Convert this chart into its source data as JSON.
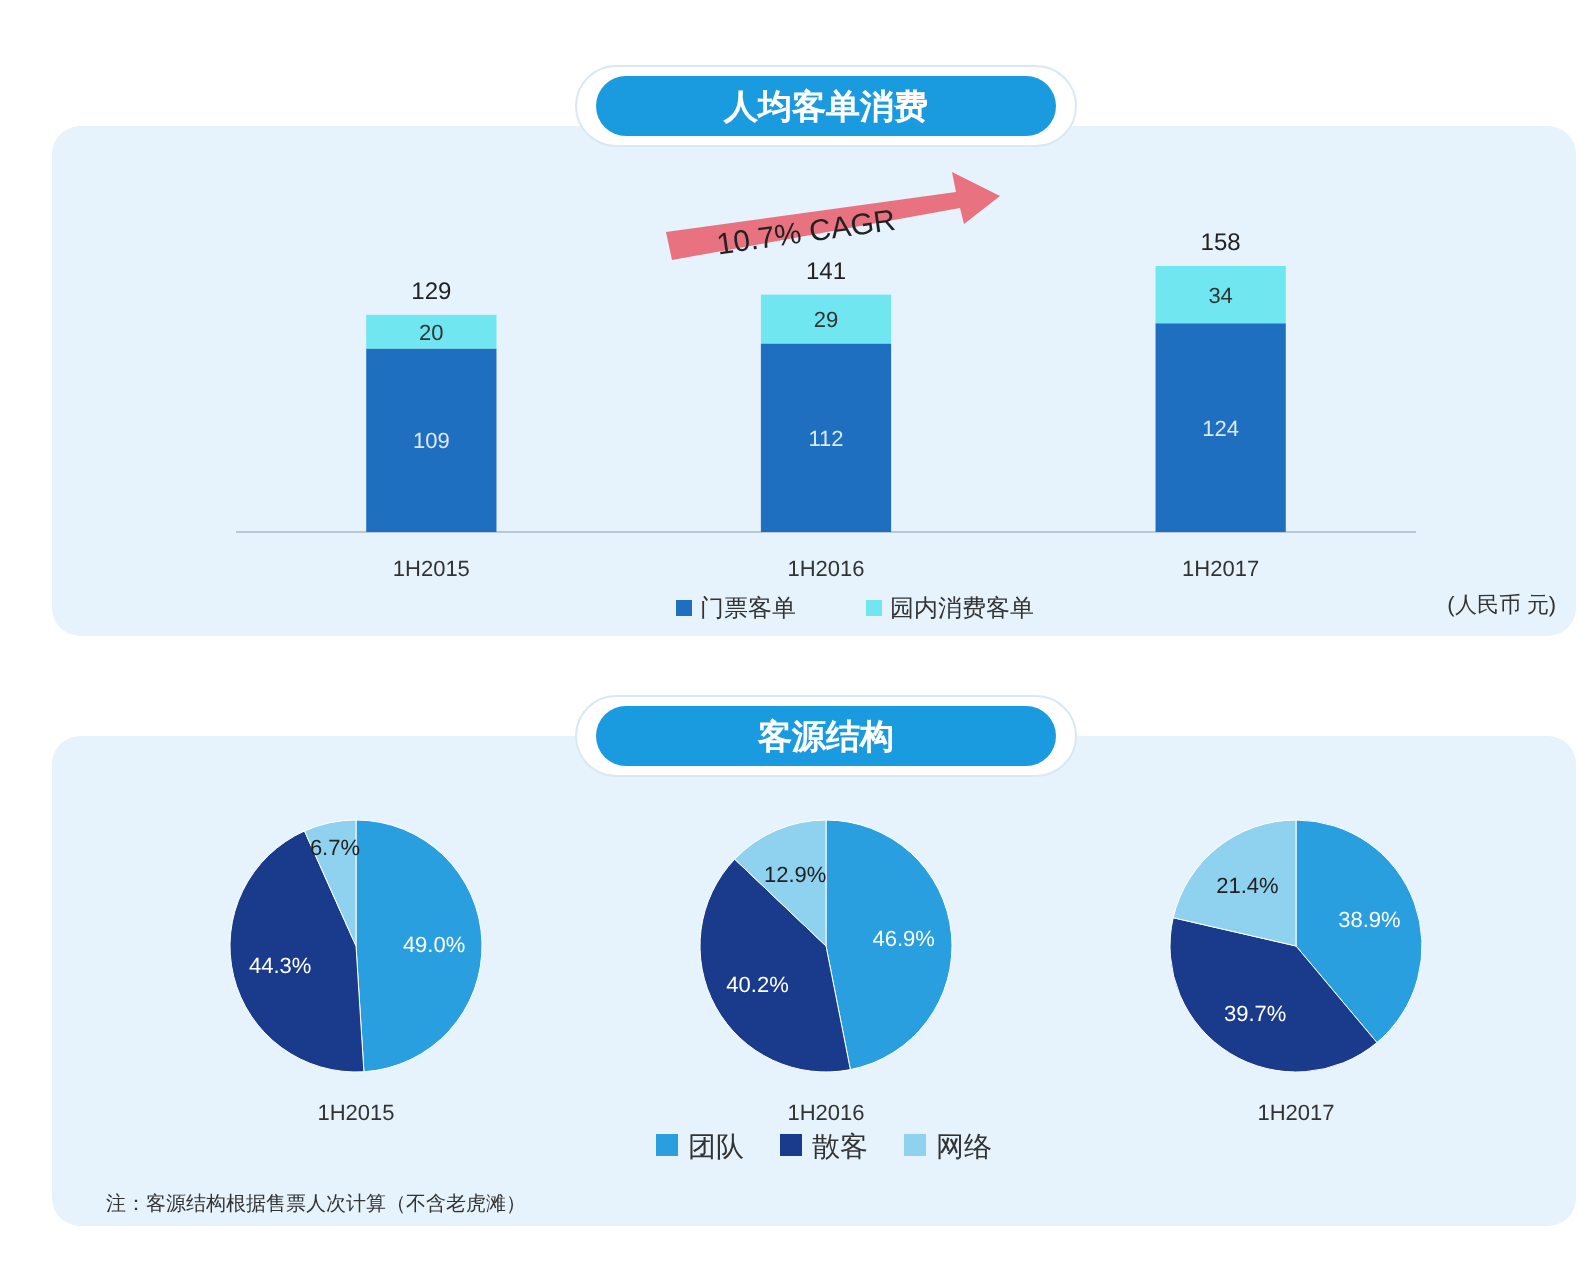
{
  "chart_data": [
    {
      "type": "bar",
      "title": "人均客单消费",
      "categories": [
        "1H2015",
        "1H2016",
        "1H2017"
      ],
      "stacked": true,
      "data_labels": true,
      "legend": "bottom",
      "totals": [
        "129",
        "141",
        "158"
      ],
      "series": [
        {
          "name": "门票客单",
          "color": "#1f6fc0",
          "values": [
            109,
            112,
            124
          ]
        },
        {
          "name": "园内消费客单",
          "color": "#6fe6f0",
          "values": [
            20,
            29,
            34
          ]
        }
      ],
      "annotations": [
        "10.7% CAGR",
        "(人民币 元)"
      ]
    },
    {
      "type": "pie",
      "xlabel": "1H2015",
      "values": [
        49.0,
        44.3,
        6.7
      ],
      "value_labels": [
        "49.0%",
        "44.3%",
        "6.7%"
      ],
      "colors": [
        "#2a9fe0",
        "#1a3a8c",
        "#8fd2f0"
      ],
      "annotations": [
        "注：客源结构根据售票人次计算（不含老虎滩）"
      ]
    },
    {
      "type": "pie",
      "title": "客源结构",
      "xlabel": "1H2016",
      "categories": [
        "团队",
        "散客",
        "网络"
      ],
      "values": [
        46.9,
        40.2,
        12.9
      ],
      "value_labels": [
        "46.9%",
        "40.2%",
        "12.9%"
      ],
      "colors": [
        "#2a9fe0",
        "#1a3a8c",
        "#8fd2f0"
      ],
      "legend": "bottom"
    },
    {
      "type": "pie",
      "xlabel": "1H2017",
      "values": [
        38.9,
        39.7,
        21.4
      ],
      "value_labels": [
        "38.9%",
        "39.7%",
        "21.4%"
      ],
      "colors": [
        "#2a9fe0",
        "#1a3a8c",
        "#8fd2f0"
      ]
    }
  ]
}
